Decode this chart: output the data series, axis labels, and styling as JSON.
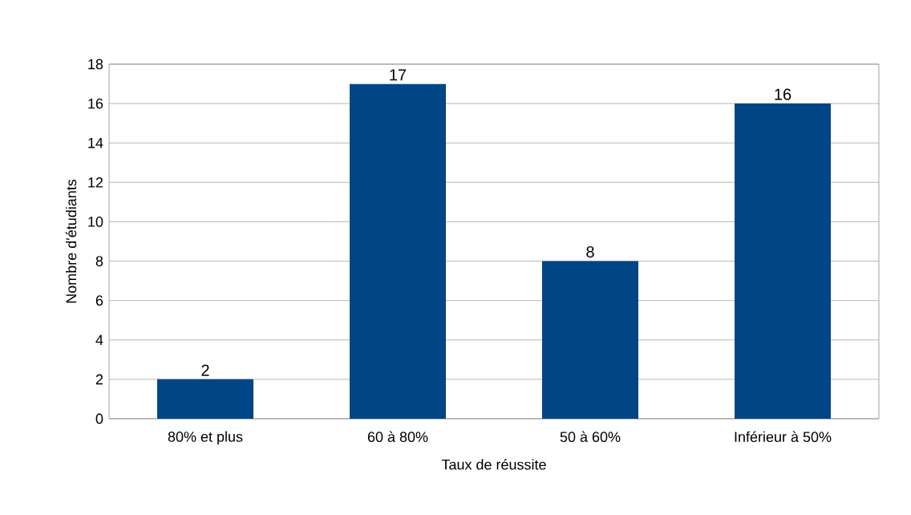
{
  "chart_data": {
    "type": "bar",
    "xlabel": "Taux de réussite",
    "ylabel": "Nombre d'étudiants",
    "categories": [
      "80% et plus",
      "60 à 80%",
      "50 à 60%",
      "Inférieur à 50%"
    ],
    "values": [
      2,
      17,
      8,
      16
    ],
    "color": "#004586",
    "ylim": [
      0,
      18
    ],
    "yticks": [
      0,
      2,
      4,
      6,
      8,
      10,
      12,
      14,
      16,
      18
    ],
    "grid": "y",
    "data_labels": true
  }
}
